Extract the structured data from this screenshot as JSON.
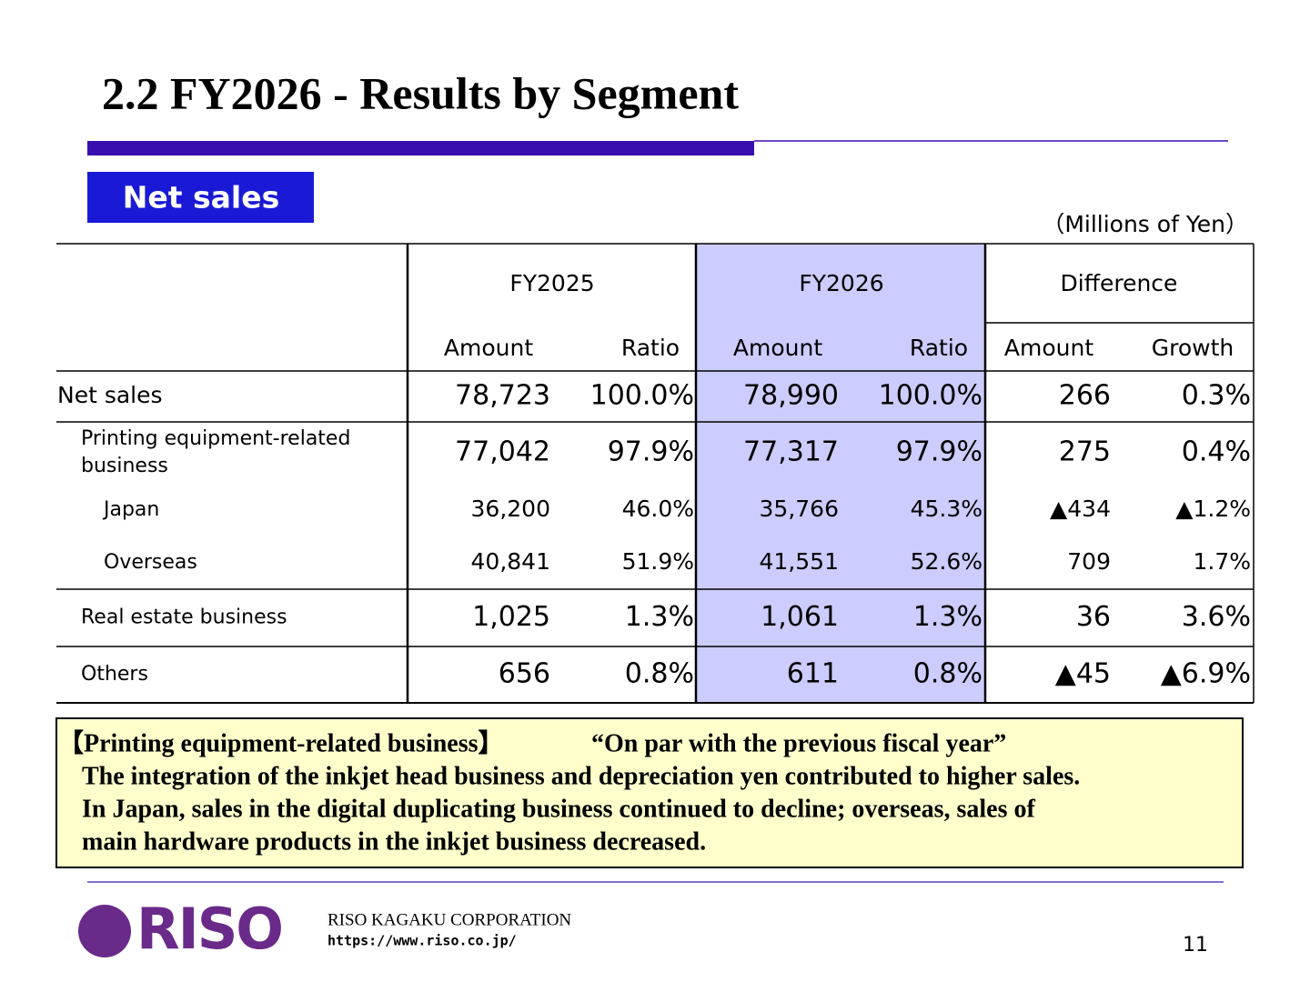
{
  "title": "2.2 FY2026 - Results by Segment",
  "section_label": "Net sales",
  "unit_note": "（Millions of Yen）",
  "table": {
    "groups": [
      "FY2025",
      "FY2026",
      "Difference"
    ],
    "subheaders": [
      "Amount",
      "Ratio",
      "Amount",
      "Ratio",
      "Amount",
      "Growth"
    ],
    "rows": [
      {
        "label_lines": [
          "Net sales"
        ],
        "cells": [
          "78,723",
          "100.0%",
          "78,990",
          "100.0%",
          "266",
          "0.3%"
        ]
      },
      {
        "label_lines": [
          "Printing equipment-related",
          "business"
        ],
        "cells": [
          "77,042",
          "97.9%",
          "77,317",
          "97.9%",
          "275",
          "0.4%"
        ]
      },
      {
        "label_lines": [
          "Japan"
        ],
        "cells": [
          "36,200",
          "46.0%",
          "35,766",
          "45.3%",
          "▲434",
          "▲1.2%"
        ]
      },
      {
        "label_lines": [
          "Overseas"
        ],
        "cells": [
          "40,841",
          "51.9%",
          "41,551",
          "52.6%",
          "709",
          "1.7%"
        ]
      },
      {
        "label_lines": [
          "Real estate business"
        ],
        "cells": [
          "1,025",
          "1.3%",
          "1,061",
          "1.3%",
          "36",
          "3.6%"
        ]
      },
      {
        "label_lines": [
          "Others"
        ],
        "cells": [
          "656",
          "0.8%",
          "611",
          "0.8%",
          "▲45",
          "▲6.9%"
        ]
      }
    ]
  },
  "note": {
    "heading": "【Printing equipment-related business】",
    "tagline": "“On par with the previous fiscal year”",
    "lines": [
      "The integration of the inkjet head business and depreciation yen contributed to higher sales.",
      "In Japan, sales in the digital duplicating business continued to decline; overseas, sales of",
      "main hardware products in the inkjet business decreased."
    ]
  },
  "footer": {
    "logo": "RISO",
    "company": "RISO KAGAKU CORPORATION",
    "url": "https://www.riso.co.jp/",
    "page": "11"
  }
}
